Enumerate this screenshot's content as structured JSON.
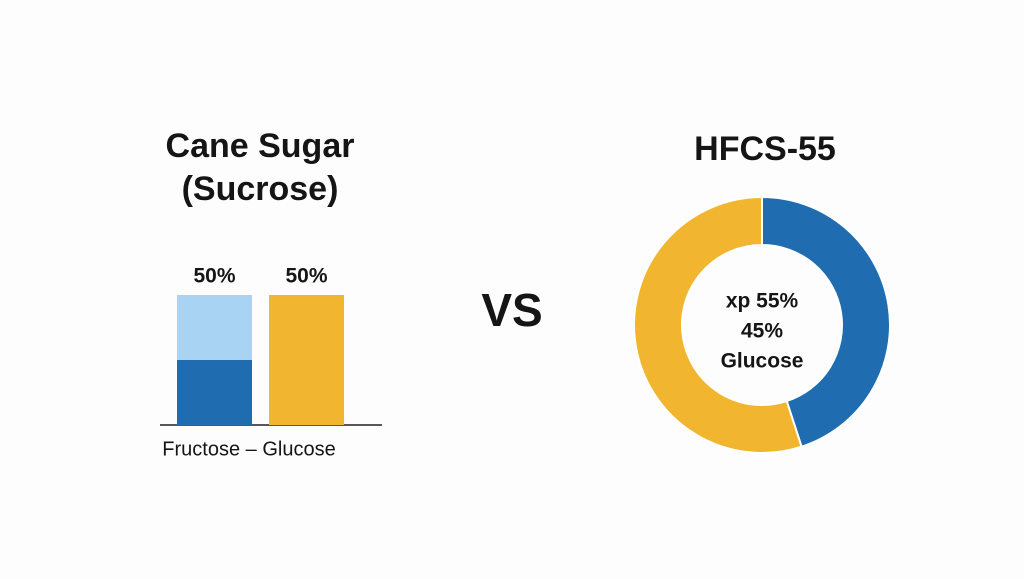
{
  "divider": "VS",
  "chart_data": [
    {
      "type": "bar",
      "title": [
        "Cane Sugar",
        "(Sucrose)"
      ],
      "xlabel": "Fructose – Glucose",
      "categories": [
        null,
        null
      ],
      "series": [
        {
          "colors": [
            "#1f6db0",
            "#f2b530"
          ],
          "values": [
            50,
            50
          ],
          "value_labels": [
            "50%",
            "50%"
          ]
        },
        {
          "colors": [
            "#a8d3f2",
            "#f2b530"
          ],
          "values": [
            50,
            50
          ],
          "value_labels": [
            "50%",
            "50%"
          ]
        }
      ]
    },
    {
      "type": "pie",
      "title": "HFCS-55",
      "values": [
        45,
        55
      ],
      "value_labels": [
        "45%",
        "xp 55%"
      ],
      "colors": [
        "#1f6db0",
        "#f2b530"
      ],
      "center_label": "Glucose"
    }
  ]
}
